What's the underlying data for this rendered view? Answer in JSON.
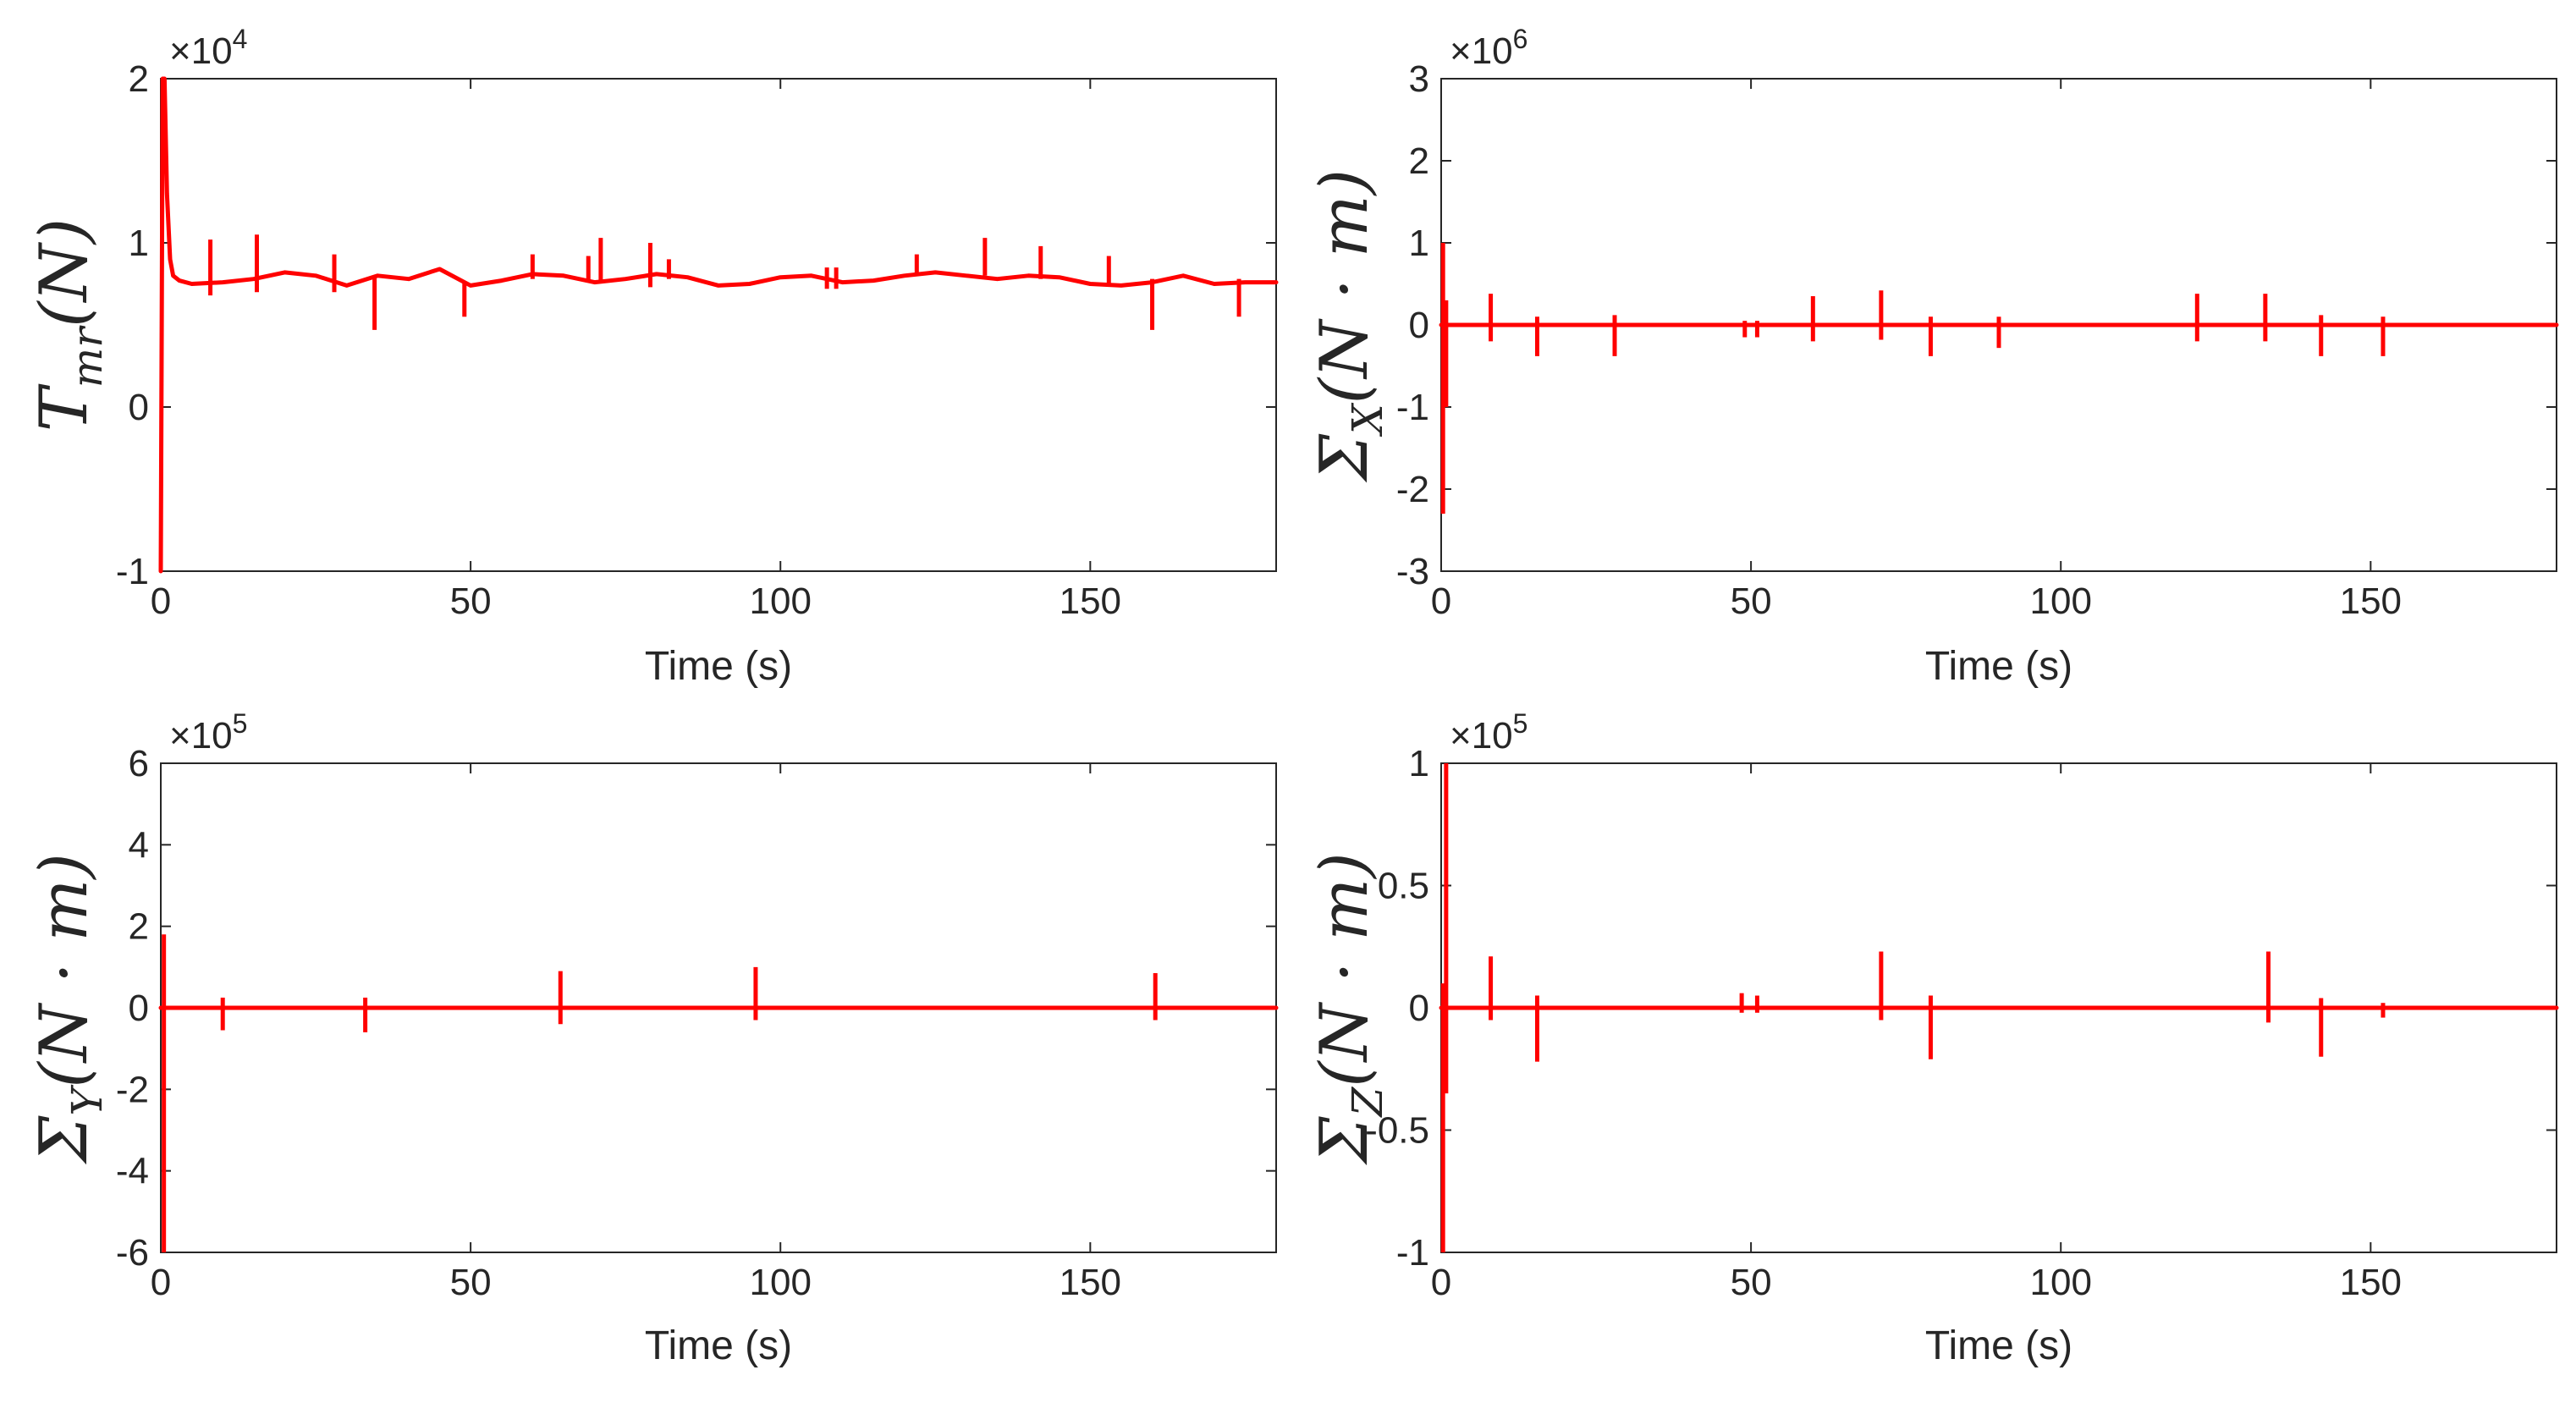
{
  "figure": {
    "background": "#ffffff",
    "axis_color": "#262626",
    "series_color": "#ff0000"
  },
  "chart_data": [
    {
      "id": "tmr",
      "type": "line",
      "title": "",
      "xlabel": "Time (s)",
      "ylabel_main": "T",
      "ylabel_sub": "mr",
      "ylabel_arg": "(N)",
      "exponent_label": "×10",
      "exponent_power": "4",
      "xlim": [
        0,
        180
      ],
      "ylim": [
        -1,
        2
      ],
      "xticks": [
        0,
        50,
        100,
        150
      ],
      "yticks": [
        -1,
        0,
        1,
        2
      ],
      "xtick_labels": [
        "0",
        "50",
        "100",
        "150"
      ],
      "ytick_labels": [
        "-1",
        "0",
        "1",
        "2"
      ],
      "series": [
        {
          "name": "T_mr",
          "color": "#ff0000",
          "x": [
            0,
            0.3,
            0.6,
            1,
            1.5,
            2,
            3,
            5,
            10,
            15,
            20,
            25,
            30,
            35,
            40,
            45,
            50,
            55,
            60,
            65,
            70,
            75,
            80,
            85,
            90,
            95,
            100,
            105,
            110,
            115,
            120,
            125,
            130,
            135,
            140,
            145,
            150,
            155,
            160,
            165,
            170,
            175,
            180
          ],
          "y": [
            -1,
            2,
            2,
            1.3,
            0.9,
            0.8,
            0.77,
            0.75,
            0.76,
            0.78,
            0.82,
            0.8,
            0.74,
            0.8,
            0.78,
            0.84,
            0.74,
            0.77,
            0.81,
            0.8,
            0.76,
            0.78,
            0.81,
            0.79,
            0.74,
            0.75,
            0.79,
            0.8,
            0.76,
            0.77,
            0.8,
            0.82,
            0.8,
            0.78,
            0.8,
            0.79,
            0.75,
            0.74,
            0.76,
            0.8,
            0.75,
            0.76,
            0.76
          ],
          "spikes": [
            [
              8,
              0.68,
              1.02
            ],
            [
              15.5,
              0.7,
              1.05
            ],
            [
              28,
              0.7,
              0.93
            ],
            [
              34.5,
              0.47,
              0.8
            ],
            [
              49,
              0.55,
              0.76
            ],
            [
              60,
              0.78,
              0.93
            ],
            [
              69,
              0.77,
              0.92
            ],
            [
              71,
              0.76,
              1.03
            ],
            [
              79,
              0.73,
              1.0
            ],
            [
              82,
              0.78,
              0.9
            ],
            [
              107.5,
              0.72,
              0.85
            ],
            [
              109,
              0.72,
              0.85
            ],
            [
              122,
              0.8,
              0.93
            ],
            [
              133,
              0.8,
              1.03
            ],
            [
              142,
              0.78,
              0.98
            ],
            [
              153,
              0.74,
              0.92
            ],
            [
              160,
              0.47,
              0.78
            ],
            [
              174,
              0.55,
              0.78
            ]
          ]
        }
      ]
    },
    {
      "id": "sigma_x",
      "type": "line",
      "title": "",
      "xlabel": "Time (s)",
      "ylabel_main": "Σ",
      "ylabel_sub": "X",
      "ylabel_arg": "(N · m)",
      "exponent_label": "×10",
      "exponent_power": "6",
      "xlim": [
        0,
        180
      ],
      "ylim": [
        -3,
        3
      ],
      "xticks": [
        0,
        50,
        100,
        150
      ],
      "yticks": [
        -3,
        -2,
        -1,
        0,
        1,
        2,
        3
      ],
      "xtick_labels": [
        "0",
        "50",
        "100",
        "150"
      ],
      "ytick_labels": [
        "-3",
        "-2",
        "-1",
        "0",
        "1",
        "2",
        "3"
      ],
      "series": [
        {
          "name": "Sigma_X",
          "color": "#ff0000",
          "x": [
            0,
            180
          ],
          "y": [
            0,
            0
          ],
          "spikes": [
            [
              0.3,
              -2.3,
              1.0
            ],
            [
              0.8,
              -1.0,
              0.3
            ],
            [
              8,
              -0.2,
              0.38
            ],
            [
              15.5,
              -0.38,
              0.1
            ],
            [
              28,
              -0.38,
              0.12
            ],
            [
              49,
              -0.15,
              0.05
            ],
            [
              51,
              -0.15,
              0.05
            ],
            [
              60,
              -0.2,
              0.35
            ],
            [
              71,
              -0.18,
              0.42
            ],
            [
              79,
              -0.38,
              0.1
            ],
            [
              90,
              -0.28,
              0.1
            ],
            [
              122,
              -0.2,
              0.38
            ],
            [
              133,
              -0.2,
              0.38
            ],
            [
              142,
              -0.38,
              0.12
            ],
            [
              152,
              -0.38,
              0.1
            ]
          ]
        }
      ]
    },
    {
      "id": "sigma_y",
      "type": "line",
      "title": "",
      "xlabel": "Time (s)",
      "ylabel_main": "Σ",
      "ylabel_sub": "Y",
      "ylabel_arg": "(N · m)",
      "exponent_label": "×10",
      "exponent_power": "5",
      "xlim": [
        0,
        180
      ],
      "ylim": [
        -6,
        6
      ],
      "xticks": [
        0,
        50,
        100,
        150
      ],
      "yticks": [
        -6,
        -4,
        -2,
        0,
        2,
        4,
        6
      ],
      "xtick_labels": [
        "0",
        "50",
        "100",
        "150"
      ],
      "ytick_labels": [
        "-6",
        "-4",
        "-2",
        "0",
        "2",
        "4",
        "6"
      ],
      "series": [
        {
          "name": "Sigma_Y",
          "color": "#ff0000",
          "x": [
            0,
            180
          ],
          "y": [
            0,
            0
          ],
          "spikes": [
            [
              0.5,
              -6,
              1.8
            ],
            [
              10,
              -0.55,
              0.25
            ],
            [
              33,
              -0.6,
              0.25
            ],
            [
              64.5,
              -0.4,
              0.9
            ],
            [
              96,
              -0.3,
              1.0
            ],
            [
              160.5,
              -0.3,
              0.85
            ]
          ]
        }
      ]
    },
    {
      "id": "sigma_z",
      "type": "line",
      "title": "",
      "xlabel": "Time (s)",
      "ylabel_main": "Σ",
      "ylabel_sub": "Z",
      "ylabel_arg": "(N · m)",
      "exponent_label": "×10",
      "exponent_power": "5",
      "xlim": [
        0,
        180
      ],
      "ylim": [
        -1,
        1
      ],
      "xticks": [
        0,
        50,
        100,
        150
      ],
      "yticks": [
        -1,
        -0.5,
        0,
        0.5,
        1
      ],
      "xtick_labels": [
        "0",
        "50",
        "100",
        "150"
      ],
      "ytick_labels": [
        "-1",
        "-0.5",
        "0",
        "0.5",
        "1"
      ],
      "series": [
        {
          "name": "Sigma_Z",
          "color": "#ff0000",
          "x": [
            0,
            180
          ],
          "y": [
            0,
            0
          ],
          "spikes": [
            [
              0.3,
              -1.0,
              0.1
            ],
            [
              0.8,
              -0.35,
              1.0
            ],
            [
              8,
              -0.05,
              0.21
            ],
            [
              15.5,
              -0.22,
              0.05
            ],
            [
              48.5,
              -0.02,
              0.06
            ],
            [
              51,
              -0.02,
              0.05
            ],
            [
              71,
              -0.05,
              0.23
            ],
            [
              79,
              -0.21,
              0.05
            ],
            [
              133.5,
              -0.06,
              0.23
            ],
            [
              142,
              -0.2,
              0.04
            ],
            [
              152,
              -0.04,
              0.02
            ]
          ]
        }
      ]
    }
  ]
}
